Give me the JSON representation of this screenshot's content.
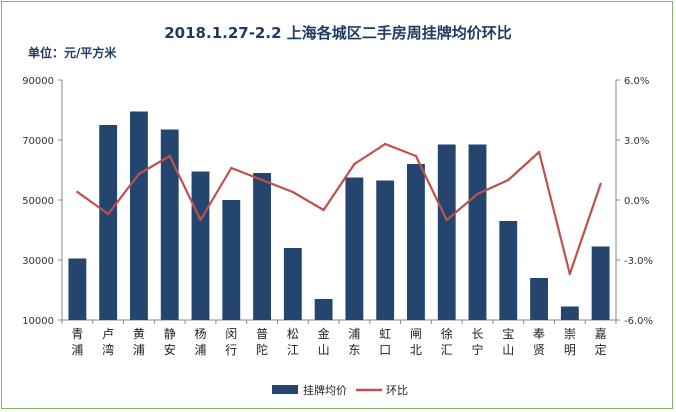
{
  "chart_data": {
    "type": "bar+line",
    "title": "2018.1.27-2.2 上海各城区二手房周挂牌均价环比",
    "unit_label": "单位：元/平方米",
    "categories": [
      "青浦",
      "卢湾",
      "黄浦",
      "静安",
      "杨浦",
      "闵行",
      "普陀",
      "松江",
      "金山",
      "浦东",
      "虹口",
      "闸北",
      "徐汇",
      "长宁",
      "宝山",
      "奉贤",
      "崇明",
      "嘉定"
    ],
    "series": [
      {
        "name": "挂牌均价",
        "type": "bar",
        "axis": "left",
        "color": "#23456e",
        "values": [
          30500,
          75000,
          79500,
          73500,
          59500,
          50000,
          59000,
          34000,
          17000,
          57500,
          56500,
          62000,
          68500,
          68500,
          43000,
          24000,
          14500,
          34500
        ]
      },
      {
        "name": "环比",
        "type": "line",
        "axis": "right",
        "color": "#c0504d",
        "values": [
          0.4,
          -0.7,
          1.3,
          2.2,
          -1.0,
          1.6,
          1.0,
          0.4,
          -0.5,
          1.8,
          2.8,
          2.2,
          -1.0,
          0.3,
          1.0,
          2.4,
          -3.7,
          0.8
        ]
      }
    ],
    "y_left": {
      "min": 10000,
      "max": 90000,
      "ticks": [
        "90000",
        "70000",
        "50000",
        "30000",
        "10000"
      ],
      "tick_values": [
        90000,
        70000,
        50000,
        30000,
        10000
      ]
    },
    "y_right": {
      "min": -6.0,
      "max": 6.0,
      "ticks": [
        "6.0%",
        "3.0%",
        "0.0%",
        "-3.0%",
        "-6.0%"
      ],
      "tick_values": [
        6,
        3,
        0,
        -3,
        -6
      ]
    },
    "legend": {
      "position": "bottom",
      "items": [
        "挂牌均价",
        "环比"
      ]
    },
    "grid": false
  }
}
